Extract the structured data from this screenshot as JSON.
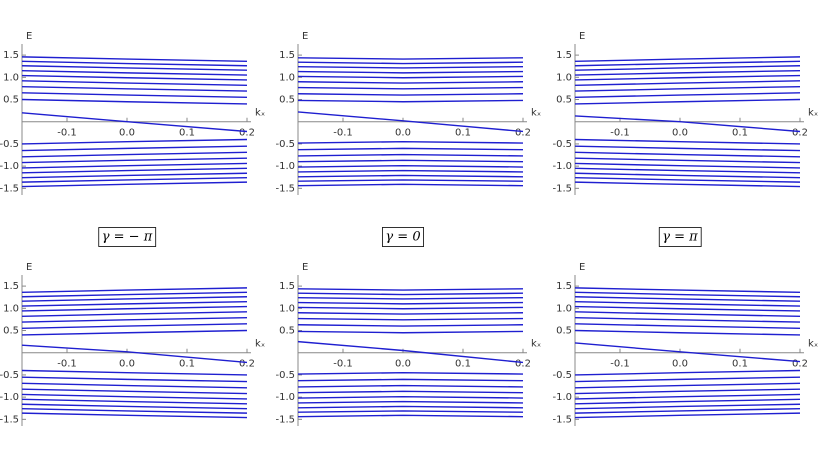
{
  "chart_data": [
    {
      "type": "line",
      "x_label": "kₓ",
      "y_label": "E",
      "caption": "γ = − π",
      "color": "#1f1fd0",
      "x": [
        -0.175,
        0,
        0.2
      ],
      "xlim": [
        -0.175,
        0.2
      ],
      "ylim": [
        -1.65,
        1.75
      ],
      "xticks": [
        -0.1,
        {
          "value": 0,
          "label": "0.0"
        },
        0.1,
        0.2
      ],
      "yticks": [
        -1.5,
        {
          "value": -1,
          "label": "-1.0"
        },
        -0.5,
        0.5,
        {
          "value": 1,
          "label": "1.0"
        },
        1.5
      ],
      "series": [
        {
          "values": [
            0.5,
            0.45,
            0.4
          ]
        },
        {
          "values": [
            0.65,
            0.6,
            0.55
          ]
        },
        {
          "values": [
            0.79,
            0.74,
            0.69
          ]
        },
        {
          "values": [
            0.92,
            0.87,
            0.82
          ]
        },
        {
          "values": [
            1.04,
            0.99,
            0.94
          ]
        },
        {
          "values": [
            1.15,
            1.1,
            1.05
          ]
        },
        {
          "values": [
            1.26,
            1.21,
            1.16
          ]
        },
        {
          "values": [
            1.36,
            1.31,
            1.26
          ]
        },
        {
          "values": [
            1.46,
            1.41,
            1.36
          ]
        },
        {
          "values": [
            0.2,
            0.0,
            -0.22
          ]
        },
        {
          "values": [
            -0.5,
            -0.45,
            -0.4
          ]
        },
        {
          "values": [
            -0.65,
            -0.6,
            -0.55
          ]
        },
        {
          "values": [
            -0.79,
            -0.74,
            -0.69
          ]
        },
        {
          "values": [
            -0.92,
            -0.87,
            -0.82
          ]
        },
        {
          "values": [
            -1.04,
            -0.99,
            -0.94
          ]
        },
        {
          "values": [
            -1.15,
            -1.1,
            -1.05
          ]
        },
        {
          "values": [
            -1.26,
            -1.21,
            -1.16
          ]
        },
        {
          "values": [
            -1.36,
            -1.31,
            -1.26
          ]
        },
        {
          "values": [
            -1.46,
            -1.41,
            -1.36
          ]
        }
      ]
    },
    {
      "type": "line",
      "x_label": "kₓ",
      "y_label": "E",
      "caption": "γ = 0",
      "color": "#1f1fd0",
      "x": [
        -0.175,
        0,
        0.2
      ],
      "xlim": [
        -0.175,
        0.2
      ],
      "ylim": [
        -1.65,
        1.75
      ],
      "xticks": [
        -0.1,
        {
          "value": 0,
          "label": "0.0"
        },
        0.1,
        0.2
      ],
      "yticks": [
        -1.5,
        {
          "value": -1,
          "label": "-1.0"
        },
        -0.5,
        0.5,
        {
          "value": 1,
          "label": "1.0"
        },
        1.5
      ],
      "series": [
        {
          "values": [
            0.48,
            0.45,
            0.48
          ]
        },
        {
          "values": [
            0.63,
            0.6,
            0.63
          ]
        },
        {
          "values": [
            0.77,
            0.74,
            0.77
          ]
        },
        {
          "values": [
            0.9,
            0.87,
            0.9
          ]
        },
        {
          "values": [
            1.02,
            0.99,
            1.02
          ]
        },
        {
          "values": [
            1.13,
            1.1,
            1.13
          ]
        },
        {
          "values": [
            1.24,
            1.21,
            1.24
          ]
        },
        {
          "values": [
            1.34,
            1.31,
            1.34
          ]
        },
        {
          "values": [
            1.44,
            1.41,
            1.44
          ]
        },
        {
          "values": [
            0.22,
            0.02,
            -0.22
          ]
        },
        {
          "values": [
            -0.48,
            -0.45,
            -0.48
          ]
        },
        {
          "values": [
            -0.63,
            -0.6,
            -0.63
          ]
        },
        {
          "values": [
            -0.77,
            -0.74,
            -0.77
          ]
        },
        {
          "values": [
            -0.9,
            -0.87,
            -0.9
          ]
        },
        {
          "values": [
            -1.02,
            -0.99,
            -1.02
          ]
        },
        {
          "values": [
            -1.13,
            -1.1,
            -1.13
          ]
        },
        {
          "values": [
            -1.24,
            -1.21,
            -1.24
          ]
        },
        {
          "values": [
            -1.34,
            -1.31,
            -1.34
          ]
        },
        {
          "values": [
            -1.44,
            -1.41,
            -1.44
          ]
        }
      ]
    },
    {
      "type": "line",
      "x_label": "kₓ",
      "y_label": "E",
      "caption": "γ = π",
      "color": "#1f1fd0",
      "x": [
        -0.175,
        0,
        0.2
      ],
      "xlim": [
        -0.175,
        0.2
      ],
      "ylim": [
        -1.65,
        1.75
      ],
      "xticks": [
        -0.1,
        {
          "value": 0,
          "label": "0.0"
        },
        0.1,
        0.2
      ],
      "yticks": [
        -1.5,
        {
          "value": -1,
          "label": "-1.0"
        },
        -0.5,
        0.5,
        {
          "value": 1,
          "label": "1.0"
        },
        1.5
      ],
      "series": [
        {
          "values": [
            0.4,
            0.45,
            0.5
          ]
        },
        {
          "values": [
            0.55,
            0.6,
            0.65
          ]
        },
        {
          "values": [
            0.69,
            0.74,
            0.79
          ]
        },
        {
          "values": [
            0.82,
            0.87,
            0.92
          ]
        },
        {
          "values": [
            0.94,
            0.99,
            1.04
          ]
        },
        {
          "values": [
            1.05,
            1.1,
            1.15
          ]
        },
        {
          "values": [
            1.16,
            1.21,
            1.26
          ]
        },
        {
          "values": [
            1.26,
            1.31,
            1.36
          ]
        },
        {
          "values": [
            1.36,
            1.41,
            1.46
          ]
        },
        {
          "values": [
            0.13,
            0.0,
            -0.22
          ]
        },
        {
          "values": [
            -0.4,
            -0.45,
            -0.5
          ]
        },
        {
          "values": [
            -0.55,
            -0.6,
            -0.65
          ]
        },
        {
          "values": [
            -0.69,
            -0.74,
            -0.79
          ]
        },
        {
          "values": [
            -0.82,
            -0.87,
            -0.92
          ]
        },
        {
          "values": [
            -0.94,
            -0.99,
            -1.04
          ]
        },
        {
          "values": [
            -1.05,
            -1.1,
            -1.15
          ]
        },
        {
          "values": [
            -1.16,
            -1.21,
            -1.26
          ]
        },
        {
          "values": [
            -1.26,
            -1.31,
            -1.36
          ]
        },
        {
          "values": [
            -1.36,
            -1.41,
            -1.46
          ]
        }
      ]
    },
    {
      "type": "line",
      "x_label": "kₓ",
      "y_label": "E",
      "color": "#1f1fd0",
      "x": [
        -0.175,
        0,
        0.2
      ],
      "xlim": [
        -0.175,
        0.2
      ],
      "ylim": [
        -1.65,
        1.75
      ],
      "xticks": [
        -0.1,
        {
          "value": 0,
          "label": "0.0"
        },
        0.1,
        0.2
      ],
      "yticks": [
        -1.5,
        {
          "value": -1,
          "label": "-1.0"
        },
        -0.5,
        0.5,
        {
          "value": 1,
          "label": "1.0"
        },
        1.5
      ],
      "series": [
        {
          "values": [
            0.4,
            0.45,
            0.5
          ]
        },
        {
          "values": [
            0.55,
            0.6,
            0.65
          ]
        },
        {
          "values": [
            0.69,
            0.74,
            0.79
          ]
        },
        {
          "values": [
            0.82,
            0.87,
            0.92
          ]
        },
        {
          "values": [
            0.94,
            0.99,
            1.04
          ]
        },
        {
          "values": [
            1.05,
            1.1,
            1.15
          ]
        },
        {
          "values": [
            1.16,
            1.21,
            1.26
          ]
        },
        {
          "values": [
            1.26,
            1.31,
            1.36
          ]
        },
        {
          "values": [
            1.36,
            1.41,
            1.46
          ]
        },
        {
          "values": [
            0.17,
            0.02,
            -0.22
          ]
        },
        {
          "values": [
            -0.4,
            -0.45,
            -0.5
          ]
        },
        {
          "values": [
            -0.55,
            -0.6,
            -0.65
          ]
        },
        {
          "values": [
            -0.69,
            -0.74,
            -0.79
          ]
        },
        {
          "values": [
            -0.82,
            -0.87,
            -0.92
          ]
        },
        {
          "values": [
            -0.94,
            -0.99,
            -1.04
          ]
        },
        {
          "values": [
            -1.05,
            -1.1,
            -1.15
          ]
        },
        {
          "values": [
            -1.16,
            -1.21,
            -1.26
          ]
        },
        {
          "values": [
            -1.26,
            -1.31,
            -1.36
          ]
        },
        {
          "values": [
            -1.36,
            -1.41,
            -1.46
          ]
        }
      ]
    },
    {
      "type": "line",
      "x_label": "kₓ",
      "y_label": "E",
      "color": "#1f1fd0",
      "x": [
        -0.175,
        0,
        0.2
      ],
      "xlim": [
        -0.175,
        0.2
      ],
      "ylim": [
        -1.65,
        1.75
      ],
      "xticks": [
        -0.1,
        {
          "value": 0,
          "label": "0.0"
        },
        0.1,
        0.2
      ],
      "yticks": [
        -1.5,
        {
          "value": -1,
          "label": "-1.0"
        },
        -0.5,
        0.5,
        {
          "value": 1,
          "label": "1.0"
        },
        1.5
      ],
      "series": [
        {
          "values": [
            0.48,
            0.45,
            0.48
          ]
        },
        {
          "values": [
            0.63,
            0.6,
            0.63
          ]
        },
        {
          "values": [
            0.77,
            0.74,
            0.77
          ]
        },
        {
          "values": [
            0.9,
            0.87,
            0.9
          ]
        },
        {
          "values": [
            1.02,
            0.99,
            1.02
          ]
        },
        {
          "values": [
            1.13,
            1.1,
            1.13
          ]
        },
        {
          "values": [
            1.24,
            1.21,
            1.24
          ]
        },
        {
          "values": [
            1.34,
            1.31,
            1.34
          ]
        },
        {
          "values": [
            1.44,
            1.41,
            1.44
          ]
        },
        {
          "values": [
            0.25,
            0.05,
            -0.22
          ]
        },
        {
          "values": [
            -0.48,
            -0.45,
            -0.48
          ]
        },
        {
          "values": [
            -0.63,
            -0.6,
            -0.63
          ]
        },
        {
          "values": [
            -0.77,
            -0.74,
            -0.77
          ]
        },
        {
          "values": [
            -0.9,
            -0.87,
            -0.9
          ]
        },
        {
          "values": [
            -1.02,
            -0.99,
            -1.02
          ]
        },
        {
          "values": [
            -1.13,
            -1.1,
            -1.13
          ]
        },
        {
          "values": [
            -1.24,
            -1.21,
            -1.24
          ]
        },
        {
          "values": [
            -1.34,
            -1.31,
            -1.34
          ]
        },
        {
          "values": [
            -1.44,
            -1.41,
            -1.44
          ]
        }
      ]
    },
    {
      "type": "line",
      "x_label": "kₓ",
      "y_label": "E",
      "color": "#1f1fd0",
      "x": [
        -0.175,
        0,
        0.2
      ],
      "xlim": [
        -0.175,
        0.2
      ],
      "ylim": [
        -1.65,
        1.75
      ],
      "xticks": [
        -0.1,
        {
          "value": 0,
          "label": "0.0"
        },
        0.1,
        0.2
      ],
      "yticks": [
        -1.5,
        {
          "value": -1,
          "label": "-1.0"
        },
        -0.5,
        0.5,
        {
          "value": 1,
          "label": "1.0"
        },
        1.5
      ],
      "series": [
        {
          "values": [
            0.5,
            0.45,
            0.4
          ]
        },
        {
          "values": [
            0.65,
            0.6,
            0.55
          ]
        },
        {
          "values": [
            0.79,
            0.74,
            0.69
          ]
        },
        {
          "values": [
            0.92,
            0.87,
            0.82
          ]
        },
        {
          "values": [
            1.04,
            0.99,
            0.94
          ]
        },
        {
          "values": [
            1.15,
            1.1,
            1.05
          ]
        },
        {
          "values": [
            1.26,
            1.21,
            1.16
          ]
        },
        {
          "values": [
            1.36,
            1.31,
            1.26
          ]
        },
        {
          "values": [
            1.46,
            1.41,
            1.36
          ]
        },
        {
          "values": [
            0.22,
            0.02,
            -0.2
          ]
        },
        {
          "values": [
            -0.5,
            -0.45,
            -0.4
          ]
        },
        {
          "values": [
            -0.65,
            -0.6,
            -0.55
          ]
        },
        {
          "values": [
            -0.79,
            -0.74,
            -0.69
          ]
        },
        {
          "values": [
            -0.92,
            -0.87,
            -0.82
          ]
        },
        {
          "values": [
            -1.04,
            -0.99,
            -0.94
          ]
        },
        {
          "values": [
            -1.15,
            -1.1,
            -1.05
          ]
        },
        {
          "values": [
            -1.26,
            -1.21,
            -1.16
          ]
        },
        {
          "values": [
            -1.36,
            -1.31,
            -1.26
          ]
        },
        {
          "values": [
            -1.46,
            -1.41,
            -1.36
          ]
        }
      ]
    }
  ]
}
